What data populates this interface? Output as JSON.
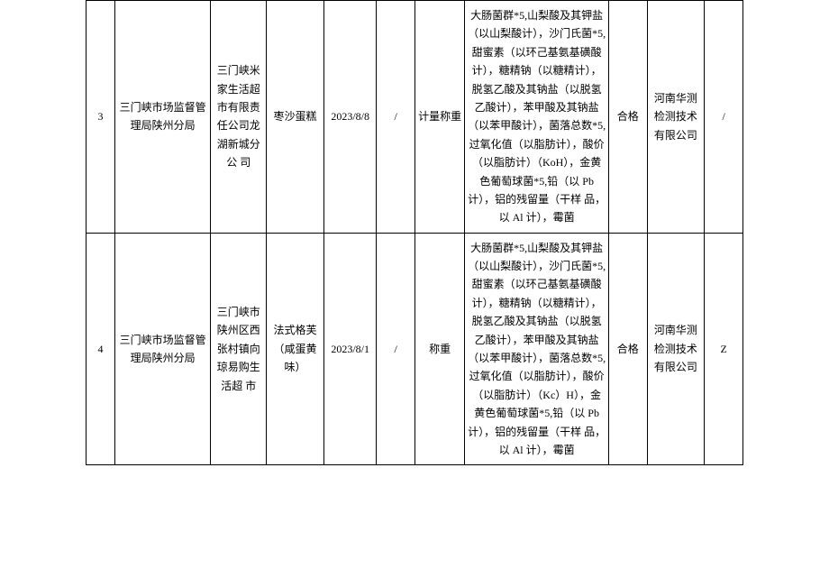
{
  "columns": {
    "widths": [
      "30px",
      "100px",
      "58px",
      "60px",
      "55px",
      "40px",
      "52px",
      "150px",
      "40px",
      "60px",
      "40px"
    ]
  },
  "rows": [
    {
      "index": "3",
      "agency": "三门峡市场监督管理局陕州分局",
      "vendor": "三门峡米家生活超市有限责任公司龙湖新城分公\n司",
      "product": "枣沙蛋糕",
      "date": "2023/8/8",
      "col6": "/",
      "weigh": "计量称重",
      "items": "大肠菌群*5,山梨酸及其钾盐（以山梨酸计），沙门氏菌*5,甜蜜素（以环己基氨基磺酸计），糖精钠（以糖精计），脱氢乙酸及其钠盐（以脱氢乙酸计），苯甲酸及其钠盐（以苯甲酸计），菌落总数*5,过氧化值（以脂肪计），酸价（以脂肪计）（KoH），金黄色葡萄球菌*5,铅（以 Pb 计），铝的残留量（干样\n品，以 Al 计），霉菌",
      "result": "合格",
      "lab": "河南华测检测技术有限公司",
      "last": "/"
    },
    {
      "index": "4",
      "agency": "三门峡市场监督管理局陕州分局",
      "vendor": "三门峡市陕州区西张村镇向琼易购生活超\n市",
      "product": "法式格芙（咸蛋黄味）",
      "date": "2023/8/1",
      "col6": "/",
      "weigh": "称重",
      "items": "大肠菌群*5,山梨酸及其钾盐（以山梨酸计），沙门氏菌*5,甜蜜素（以环己基氨基磺酸计），糖精钠（以糖精计），脱氢乙酸及其钠盐（以脱氢乙酸计），苯甲酸及其钠盐（以苯甲酸计），菌落总数*5,过氧化值（以脂肪计），酸价（以脂肪计）（Kc）H），金黄色葡萄球菌*5,铅（以 Pb 计），铝的残留量（干样\n品，以 Al 计），霉菌",
      "result": "合格",
      "lab": "河南华测检测技术有限公司",
      "last": "Z"
    }
  ]
}
